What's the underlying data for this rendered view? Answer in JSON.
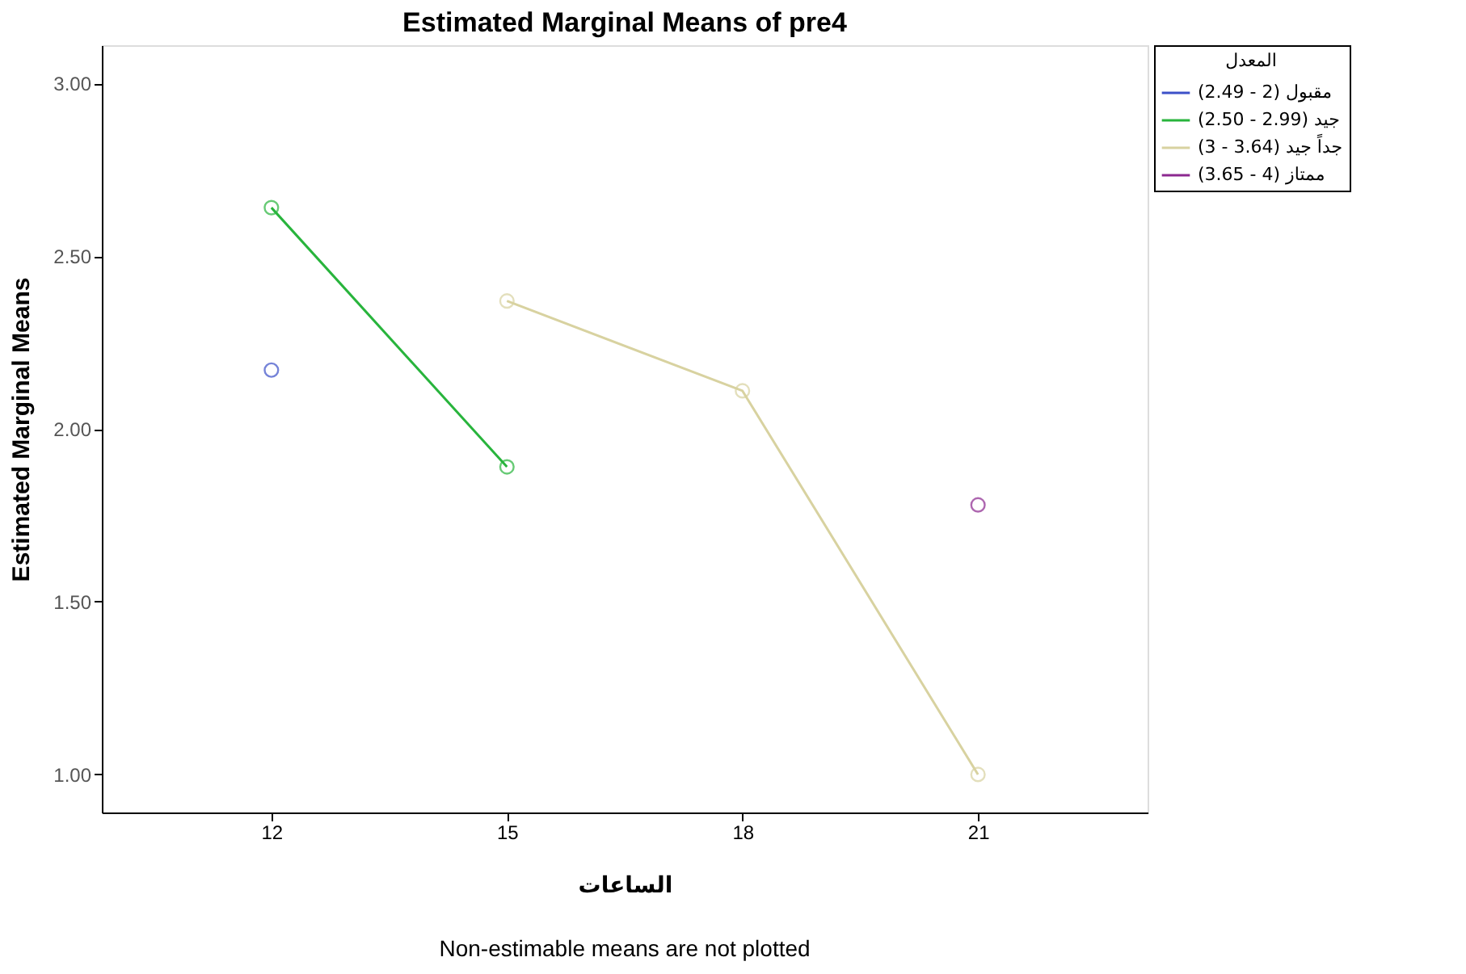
{
  "chart_data": {
    "type": "line",
    "title": "Estimated Marginal Means of pre4",
    "xlabel": "الساعات",
    "ylabel": "Estimated Marginal Means",
    "legend_title": "المعدل",
    "categories": [
      "12",
      "15",
      "18",
      "21"
    ],
    "series": [
      {
        "name": "(2.49 - 2) مقبول",
        "color": "#3c50c8",
        "values": [
          2.17,
          null,
          null,
          null
        ]
      },
      {
        "name": "(2.50 - 2.99) جيد",
        "color": "#28b43c",
        "values": [
          2.64,
          1.89,
          null,
          null
        ]
      },
      {
        "name": "(3 - 3.64) جداً جيد",
        "color": "#d8d2a0",
        "values": [
          null,
          2.37,
          2.11,
          1.0
        ]
      },
      {
        "name": "(3.65 - 4) ممتاز",
        "color": "#8c2890",
        "values": [
          null,
          null,
          null,
          1.78
        ]
      }
    ],
    "ylim": [
      0.89,
      3.11
    ],
    "yticks": [
      {
        "value": 1.0,
        "label": "1.00"
      },
      {
        "value": 1.5,
        "label": "1.50"
      },
      {
        "value": 2.0,
        "label": "2.00"
      },
      {
        "value": 2.5,
        "label": "2.50"
      },
      {
        "value": 3.0,
        "label": "3.00"
      }
    ],
    "marker": "circle",
    "line_style": "solid",
    "grid": false,
    "legend": "top right",
    "annotations": [
      "Non-estimable means are not plotted"
    ]
  }
}
